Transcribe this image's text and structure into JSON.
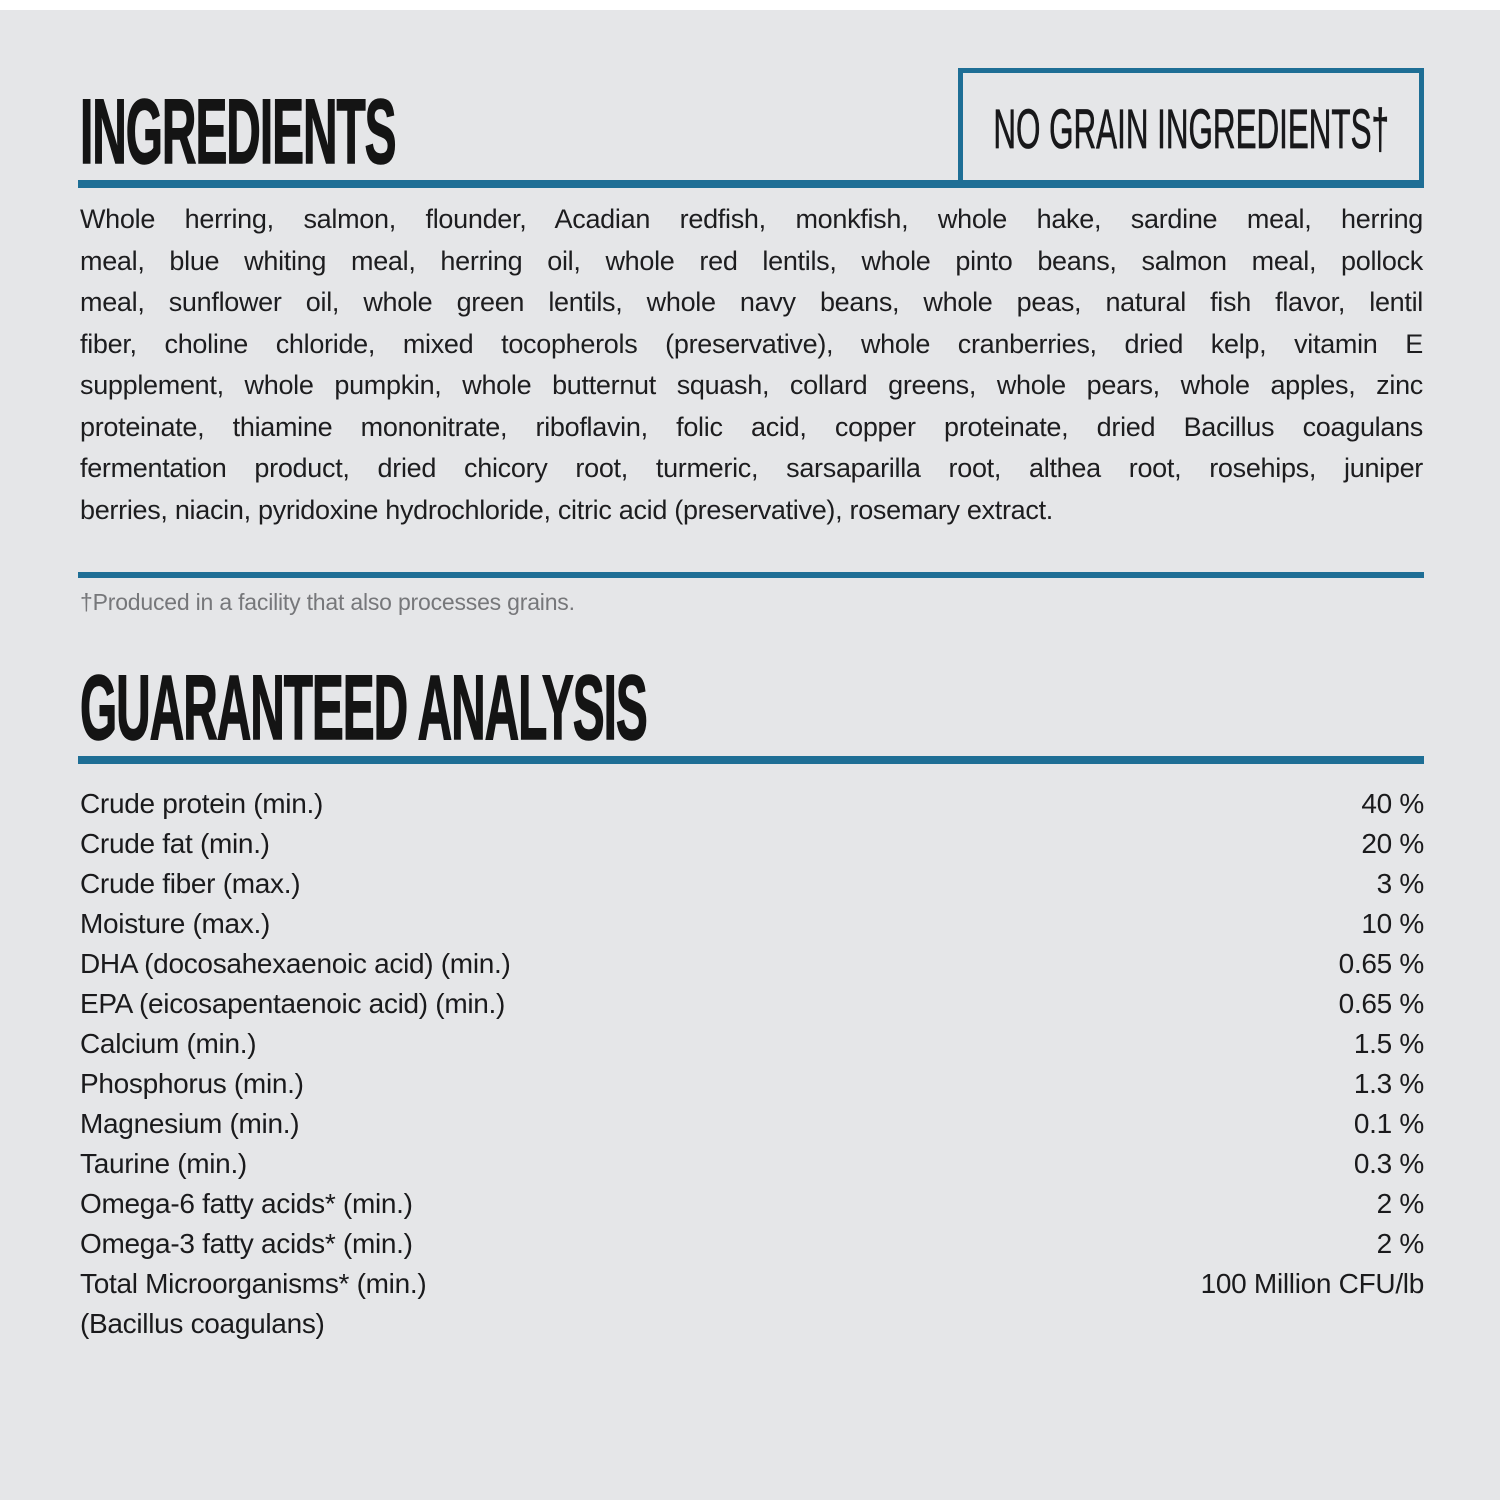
{
  "page": {
    "background": "#e5e6e8",
    "accent": "#1e6e95"
  },
  "ingredients_section": {
    "title": "INGREDIENTS",
    "badge_label": "NO GRAIN INGREDIENTS†",
    "lines": [
      "Whole herring, salmon, flounder, Acadian redfish, monkfish, whole hake, sardine meal, herring",
      "meal, blue whiting meal, herring oil, whole red lentils, whole pinto beans, salmon meal, pollock",
      "meal, sunflower oil, whole green lentils, whole navy beans, whole peas, natural fish flavor, lentil",
      "fiber, choline chloride, mixed tocopherols (preservative), whole cranberries, dried kelp, vitamin E",
      "supplement, whole pumpkin, whole butternut squash, collard greens, whole pears, whole apples, zinc",
      "proteinate, thiamine mononitrate, riboflavin, folic acid, copper proteinate, dried Bacillus coagulans",
      "fermentation product, dried chicory root, turmeric, sarsaparilla root, althea root, rosehips, juniper",
      "berries, niacin, pyridoxine hydrochloride, citric acid (preservative), rosemary extract."
    ],
    "footnote": "†Produced in a facility that also processes grains."
  },
  "analysis_section": {
    "title": "GUARANTEED ANALYSIS",
    "rows": [
      {
        "label": "Crude protein (min.)",
        "value": "40 %"
      },
      {
        "label": "Crude fat (min.)",
        "value": "20 %"
      },
      {
        "label": "Crude fiber (max.)",
        "value": "3 %"
      },
      {
        "label": "Moisture (max.)",
        "value": "10 %"
      },
      {
        "label": "DHA (docosahexaenoic acid) (min.)",
        "value": "0.65 %"
      },
      {
        "label": "EPA (eicosapentaenoic acid) (min.)",
        "value": "0.65 %"
      },
      {
        "label": "Calcium (min.)",
        "value": "1.5 %"
      },
      {
        "label": "Phosphorus (min.)",
        "value": "1.3 %"
      },
      {
        "label": "Magnesium (min.)",
        "value": "0.1 %"
      },
      {
        "label": "Taurine (min.)",
        "value": "0.3 %"
      },
      {
        "label": "Omega-6 fatty acids* (min.)",
        "value": "2 %"
      },
      {
        "label": "Omega-3 fatty acids* (min.)",
        "value": "2 %"
      },
      {
        "label": "Total Microorganisms* (min.)",
        "value": "100 Million CFU/lb"
      },
      {
        "label": "(Bacillus coagulans)",
        "value": ""
      }
    ]
  }
}
